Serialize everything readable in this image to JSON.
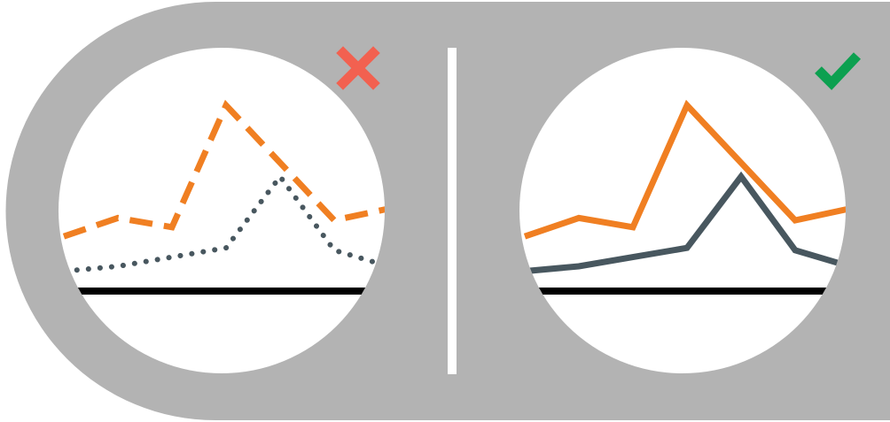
{
  "colors": {
    "background": "#b3b3b3",
    "panel": "#ffffff",
    "divider": "#ffffff",
    "axis": "#000000",
    "series_orange": "#f07f22",
    "series_slate": "#48575f",
    "mark_wrong": "#f26150",
    "mark_right": "#0ca050"
  },
  "panels": [
    {
      "verdict": "wrong",
      "mark_icon": "cross-icon",
      "series": [
        {
          "color_key": "series_orange",
          "style": "dashed",
          "points": [
            [
              0,
              2.3
            ],
            [
              1,
              3.1
            ],
            [
              2,
              2.7
            ],
            [
              3,
              8.0
            ],
            [
              4,
              5.5
            ],
            [
              5,
              3.0
            ],
            [
              6,
              3.5
            ],
            [
              6.6,
              2.5
            ]
          ]
        },
        {
          "color_key": "series_slate",
          "style": "dotted",
          "points": [
            [
              -0.4,
              0.7
            ],
            [
              1,
              1.0
            ],
            [
              2,
              1.4
            ],
            [
              3,
              1.8
            ],
            [
              4,
              4.9
            ],
            [
              5,
              1.7
            ],
            [
              6,
              1.0
            ],
            [
              6.6,
              0.8
            ]
          ]
        }
      ]
    },
    {
      "verdict": "right",
      "mark_icon": "check-icon",
      "series": [
        {
          "color_key": "series_orange",
          "style": "solid",
          "points": [
            [
              0,
              2.3
            ],
            [
              1,
              3.1
            ],
            [
              2,
              2.7
            ],
            [
              3,
              8.0
            ],
            [
              4,
              5.5
            ],
            [
              5,
              3.0
            ],
            [
              6,
              3.5
            ],
            [
              6.6,
              2.5
            ]
          ]
        },
        {
          "color_key": "series_slate",
          "style": "solid",
          "points": [
            [
              -0.4,
              0.7
            ],
            [
              1,
              1.0
            ],
            [
              2,
              1.4
            ],
            [
              3,
              1.8
            ],
            [
              4,
              4.9
            ],
            [
              5,
              1.7
            ],
            [
              6,
              1.0
            ],
            [
              6.6,
              0.8
            ]
          ]
        }
      ]
    }
  ]
}
